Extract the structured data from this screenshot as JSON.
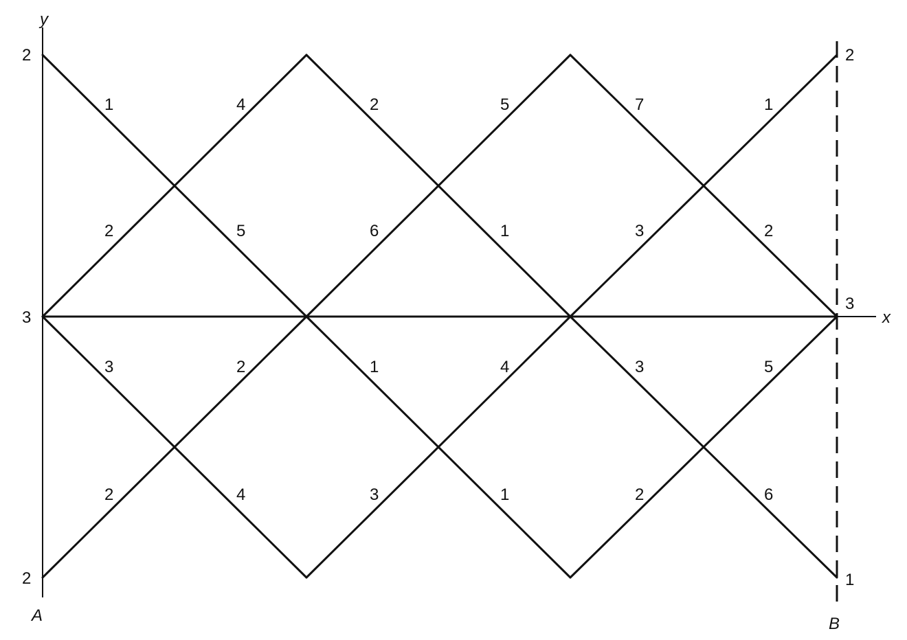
{
  "axes": {
    "x_label": "x",
    "y_label": "y"
  },
  "points": {
    "left": "A",
    "right": "B"
  },
  "left_boundary_values": {
    "top": "2",
    "middle": "3",
    "bottom": "2"
  },
  "right_boundary_values": {
    "top": "2",
    "middle": "3",
    "bottom": "1"
  },
  "segment_weights": {
    "row1": [
      "1",
      "4",
      "2",
      "5",
      "7",
      "1"
    ],
    "row2": [
      "2",
      "5",
      "6",
      "1",
      "3",
      "2"
    ],
    "row3": [
      "3",
      "2",
      "1",
      "4",
      "3",
      "5"
    ],
    "row4": [
      "2",
      "4",
      "3",
      "1",
      "2",
      "6"
    ]
  },
  "colors": {
    "ink": "#111111",
    "background": "#ffffff"
  }
}
